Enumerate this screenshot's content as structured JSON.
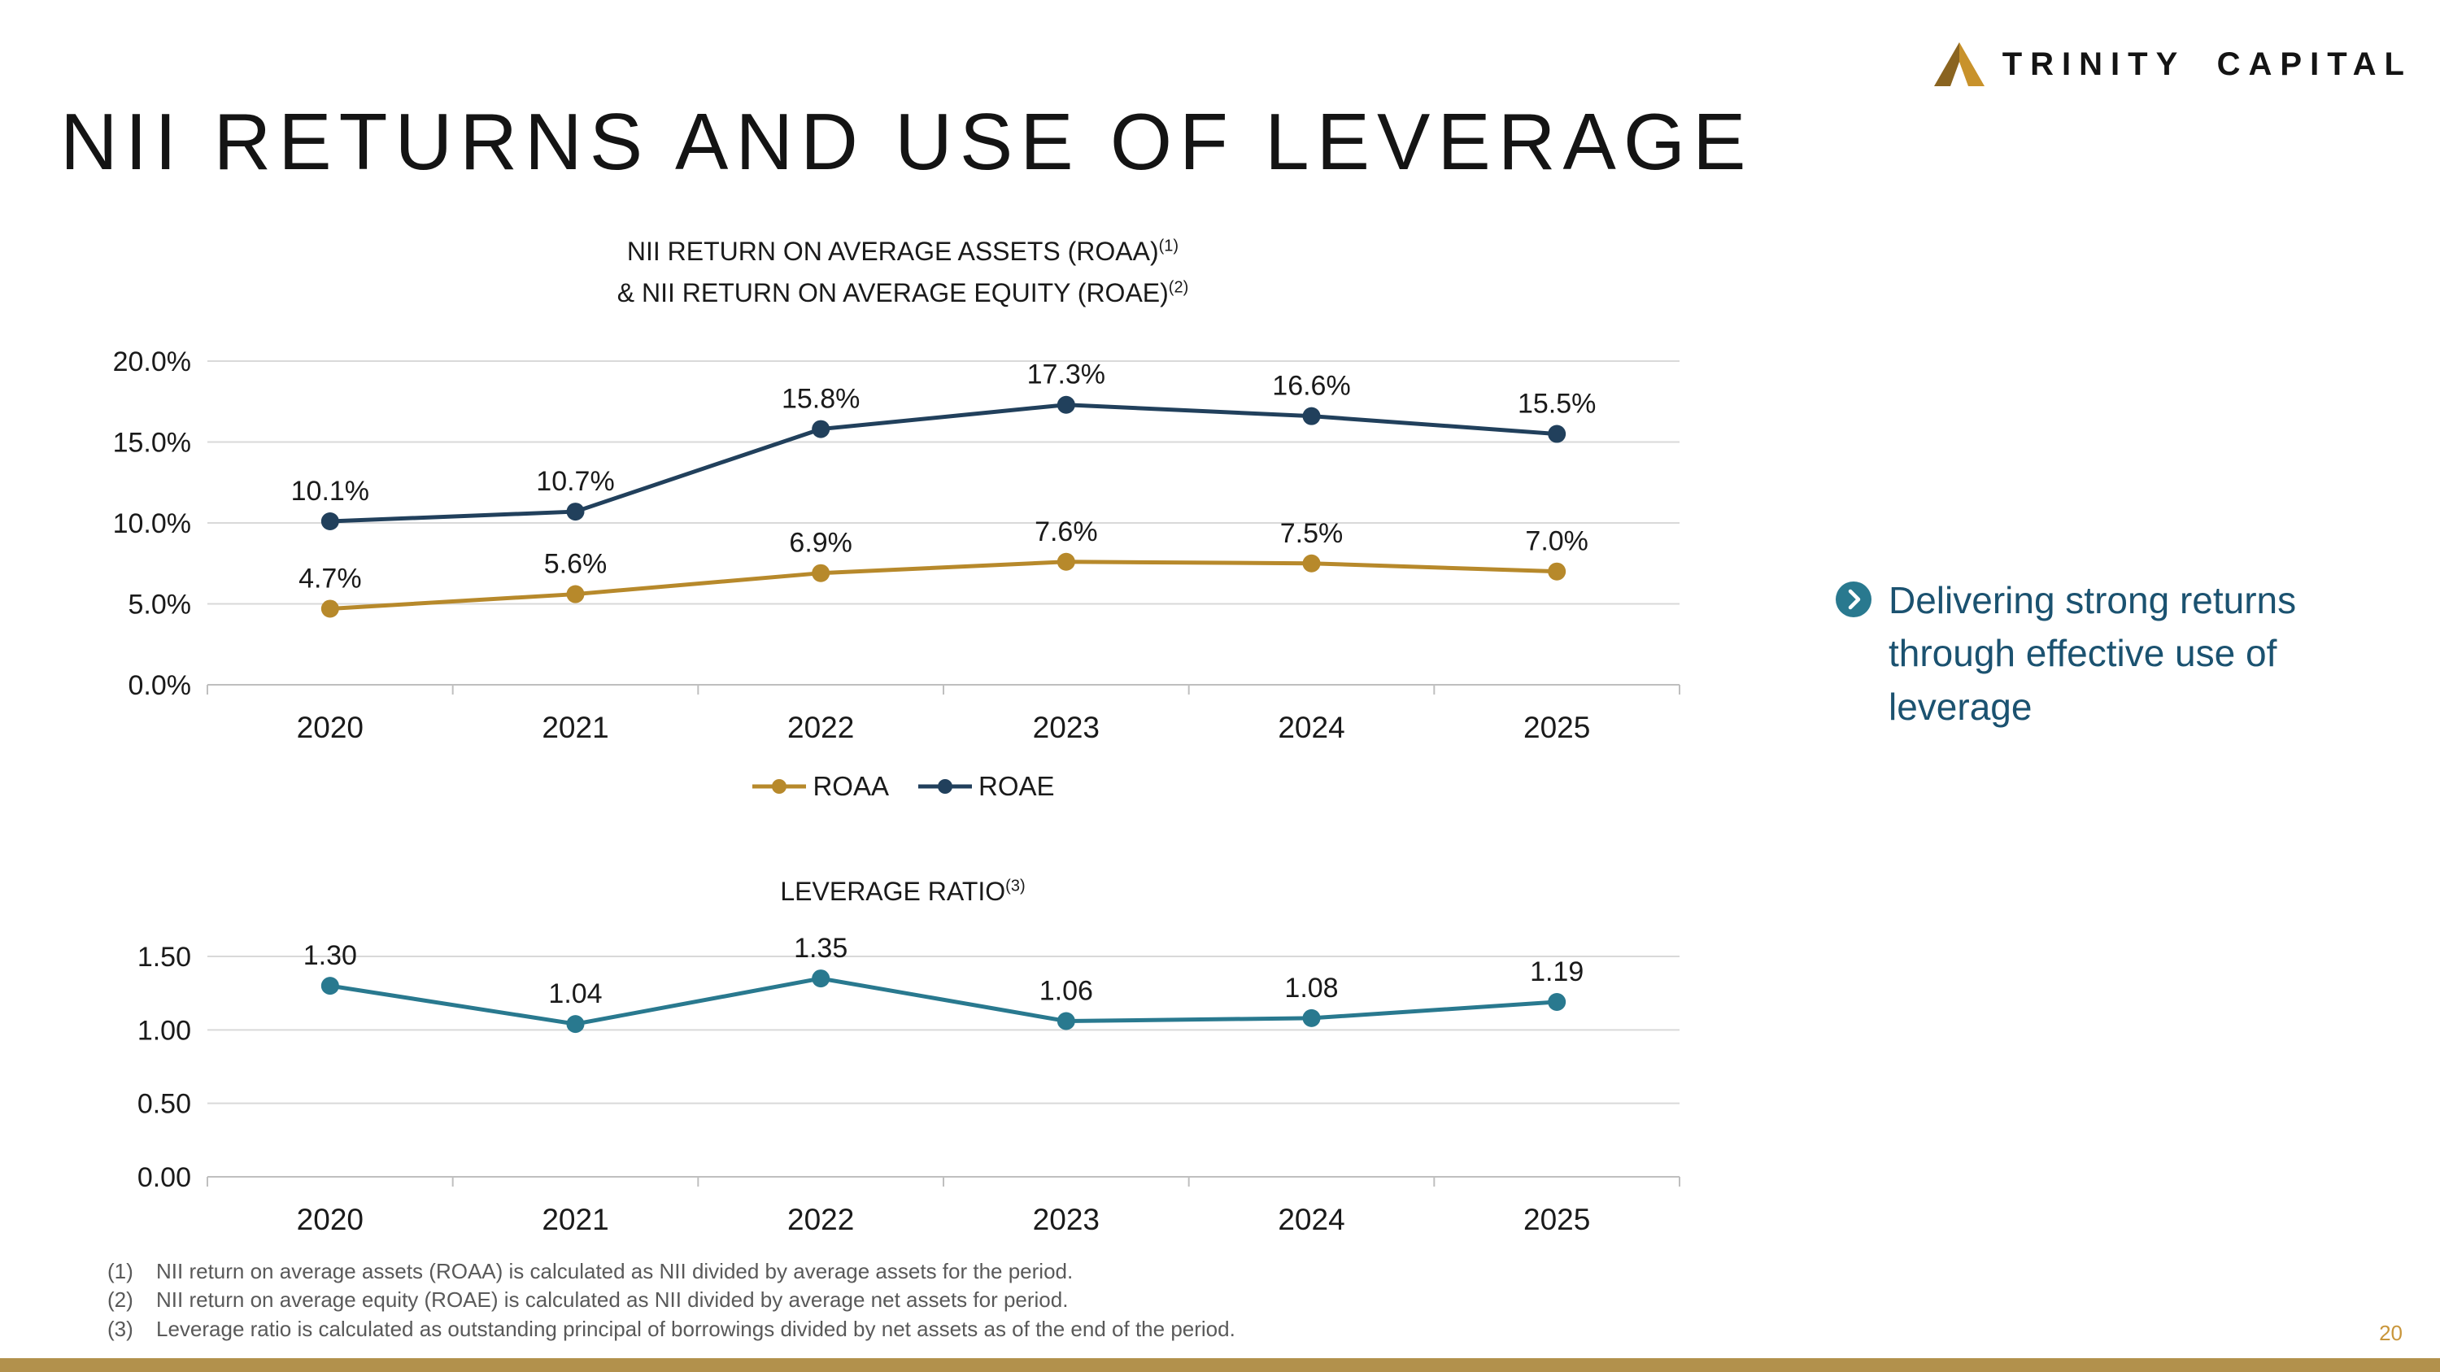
{
  "brand": {
    "name": "TRINITY CAPITAL"
  },
  "title": "NII RETURNS AND USE OF LEVERAGE",
  "callout": {
    "text": "Delivering strong returns through effective use of leverage"
  },
  "footnotes": [
    {
      "num": "(1)",
      "text": "NII return on average assets (ROAA) is calculated as NII divided by average assets for the period."
    },
    {
      "num": "(2)",
      "text": "NII return on average equity (ROAE) is calculated as NII divided by average net assets for period."
    },
    {
      "num": "(3)",
      "text": "Leverage ratio is calculated as outstanding principal of borrowings divided by net assets as of the end of the period."
    }
  ],
  "page_number": "20",
  "colors": {
    "gold": "#B7892B",
    "navy": "#21405C",
    "teal": "#29798F",
    "grid": "#D9D9D9",
    "axis": "#BFBFBF",
    "label": "#1A1A1A",
    "callout_text": "#1B5270",
    "footer_bar": "#B2914C",
    "page_number": "#C9963B"
  },
  "chart_data": [
    {
      "type": "line",
      "title_line1": "NII RETURN ON AVERAGE ASSETS (ROAA)",
      "sup1": "(1)",
      "title_line2": "& NII RETURN ON AVERAGE EQUITY (ROAE)",
      "sup2": "(2)",
      "categories": [
        "2020",
        "2021",
        "2022",
        "2023",
        "2024",
        "2025"
      ],
      "series": [
        {
          "name": "ROAA",
          "color": "#B7892B",
          "values": [
            4.7,
            5.6,
            6.9,
            7.6,
            7.5,
            7.0
          ],
          "labels": [
            "4.7%",
            "5.6%",
            "6.9%",
            "7.6%",
            "7.5%",
            "7.0%"
          ]
        },
        {
          "name": "ROAE",
          "color": "#21405C",
          "values": [
            10.1,
            10.7,
            15.8,
            17.3,
            16.6,
            15.5
          ],
          "labels": [
            "10.1%",
            "10.7%",
            "15.8%",
            "17.3%",
            "16.6%",
            "15.5%"
          ]
        }
      ],
      "ylim": [
        0,
        20
      ],
      "yticks": [
        {
          "v": 0,
          "label": "0.0%"
        },
        {
          "v": 5,
          "label": "5.0%"
        },
        {
          "v": 10,
          "label": "10.0%"
        },
        {
          "v": 15,
          "label": "15.0%"
        },
        {
          "v": 20,
          "label": "20.0%"
        }
      ],
      "xlabel": "",
      "ylabel": "",
      "grid": true,
      "legend_position": "bottom"
    },
    {
      "type": "line",
      "title": "LEVERAGE RATIO",
      "sup": "(3)",
      "categories": [
        "2020",
        "2021",
        "2022",
        "2023",
        "2024",
        "2025"
      ],
      "series": [
        {
          "name": "Leverage Ratio",
          "color": "#29798F",
          "values": [
            1.3,
            1.04,
            1.35,
            1.06,
            1.08,
            1.19
          ],
          "labels": [
            "1.30",
            "1.04",
            "1.35",
            "1.06",
            "1.08",
            "1.19"
          ]
        }
      ],
      "ylim": [
        0,
        1.5
      ],
      "yticks": [
        {
          "v": 0,
          "label": "0.00"
        },
        {
          "v": 0.5,
          "label": "0.50"
        },
        {
          "v": 1.0,
          "label": "1.00"
        },
        {
          "v": 1.5,
          "label": "1.50"
        }
      ],
      "xlabel": "",
      "ylabel": "",
      "grid": true,
      "legend_position": "none"
    }
  ]
}
